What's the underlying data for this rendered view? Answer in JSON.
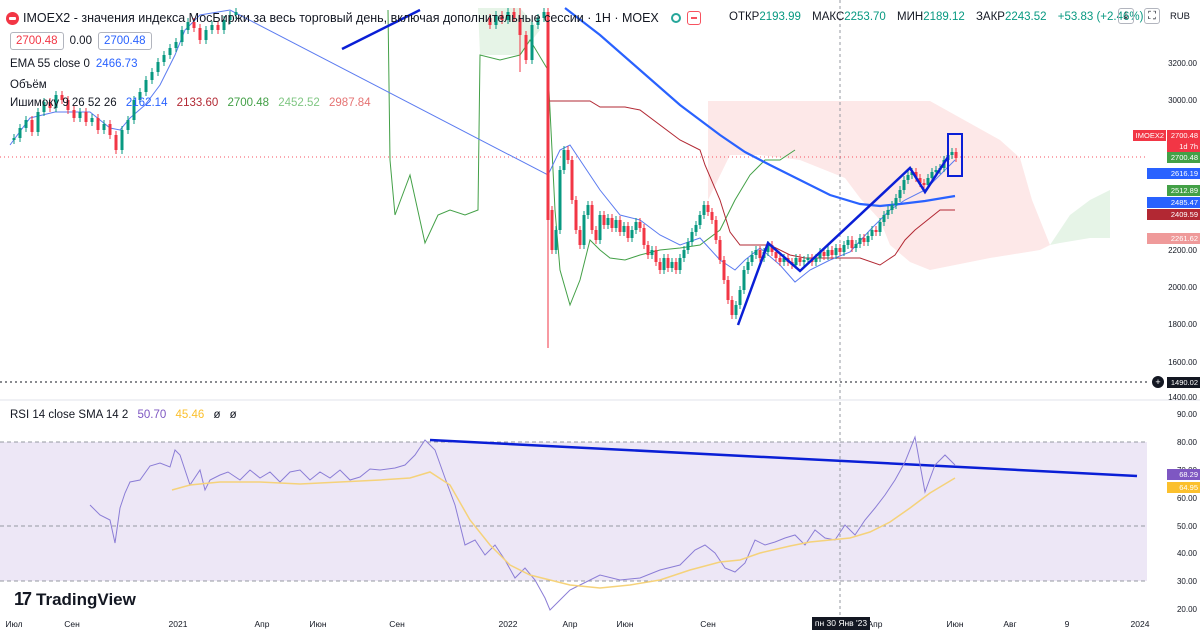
{
  "header": {
    "symbol": "IMOEX2",
    "title": "IMOEX2 - значения индекса МосБиржи за весь торговый день, включая дополнительные сессии · 1H · MOEX",
    "ohlc": {
      "open_label": "ОТКР",
      "open": "2193.99",
      "high_label": "МАКС",
      "high": "2253.70",
      "low_label": "МИН",
      "low": "2189.12",
      "close_label": "ЗАКР",
      "close": "2243.52",
      "change": "+53.83 (+2.46%)"
    },
    "currency": "RUB",
    "icons": [
      "eye-icon",
      "flag-icon",
      "sort-down-icon",
      "fullscreen-icon"
    ]
  },
  "price_inputs": {
    "sell": "2700.48",
    "spread": "0.00",
    "buy": "2700.48"
  },
  "legend": {
    "ema_label": "EMA 55 close 0",
    "ema_value": "2466.73",
    "volume_label": "Объём",
    "ichimoku_label": "Ишимоку 9 26 52 26",
    "ichimoku_values": [
      "2162.14",
      "2133.60",
      "2700.48",
      "2452.52",
      "2987.84"
    ],
    "ichimoku_colors": [
      "#2962ff",
      "#b22833",
      "#43a047",
      "#a5d6a7",
      "#ef9a9a"
    ]
  },
  "rsi_legend": {
    "label": "RSI 14 close SMA 14 2",
    "rsi": "50.70",
    "sma": "45.46",
    "extra": [
      "ø",
      "ø"
    ]
  },
  "price_axis": {
    "ticks": [
      "3400.00",
      "3200.00",
      "3000.00",
      "2800.00",
      "2600.00",
      "2400.00",
      "2200.00",
      "2000.00",
      "1800.00",
      "1600.00",
      "1400.00"
    ],
    "badges": [
      {
        "text": "IMOEX2",
        "color": "#f23645"
      },
      {
        "text": "2700.48",
        "color": "#f23645"
      },
      {
        "text": "1d 7h",
        "color": "#f23645"
      },
      {
        "text": "2700.48",
        "color": "#43a047"
      },
      {
        "text": "2616.19",
        "color": "#2962ff"
      },
      {
        "text": "2512.89",
        "color": "#43a047"
      },
      {
        "text": "2485.47",
        "color": "#2962ff"
      },
      {
        "text": "2409.59",
        "color": "#b22833"
      },
      {
        "text": "2261.62",
        "color": "#ef9a9a"
      },
      {
        "text": "1490.02",
        "color": "#131722"
      }
    ],
    "crosshair_icon": "plus-icon"
  },
  "rsi_axis": {
    "ticks": [
      "90.00",
      "80.00",
      "70.00",
      "60.00",
      "50.00",
      "40.00",
      "30.00",
      "20.00"
    ],
    "badges": [
      {
        "text": "68.29",
        "color": "#7e57c2"
      },
      {
        "text": "64.95",
        "color": "#fbc02d"
      }
    ]
  },
  "time_axis": {
    "labels": [
      "Июл",
      "Сен",
      "2021",
      "Апр",
      "Июн",
      "Сен",
      "2022",
      "Апр",
      "Июн",
      "Сен",
      "Апр",
      "Июн",
      "Авг",
      "9",
      "2024"
    ],
    "cursor_label": "пн 30 Янв '23"
  },
  "branding": {
    "logo_text": "TradingView"
  },
  "colors": {
    "bull": "#089981",
    "bear": "#f23645",
    "ema": "#2962ff",
    "trendline": "#0a1fd6",
    "rsi_line": "#7e57c2",
    "rsi_sma": "#fbc02d",
    "rsi_band": "#ede7f6",
    "cloud_bear": "#fde8e8",
    "cloud_bull": "#e6f4e7"
  }
}
